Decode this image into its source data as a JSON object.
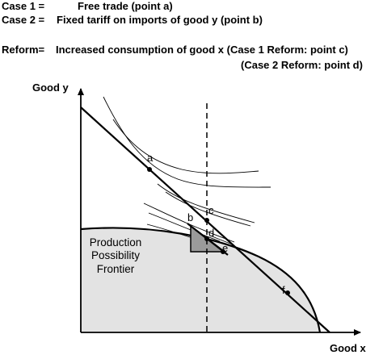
{
  "header": {
    "case1_label": "Case 1 =",
    "case1_text": "Free trade (point a)",
    "case2_label": "Case 2 =",
    "case2_text": "Fixed tariff on imports of good y (point b)",
    "reform_label": "Reform=",
    "reform_text": "Increased consumption of good x (Case 1 Reform:  point c)",
    "reform_text2": "(Case 2 Reform:  point d)"
  },
  "diagram": {
    "y_axis_label": "Good y",
    "x_axis_label": "Good x",
    "ppf_label_lines": [
      "Production",
      "Possibility",
      "Frontier"
    ],
    "points": {
      "a": "a",
      "b": "b",
      "c": "c",
      "d": "d",
      "e": "e",
      "f": "f"
    }
  },
  "colors": {
    "ppf_fill": "#e3e3e3",
    "triangle_fill": "#9a9a9a",
    "line": "#000000"
  }
}
